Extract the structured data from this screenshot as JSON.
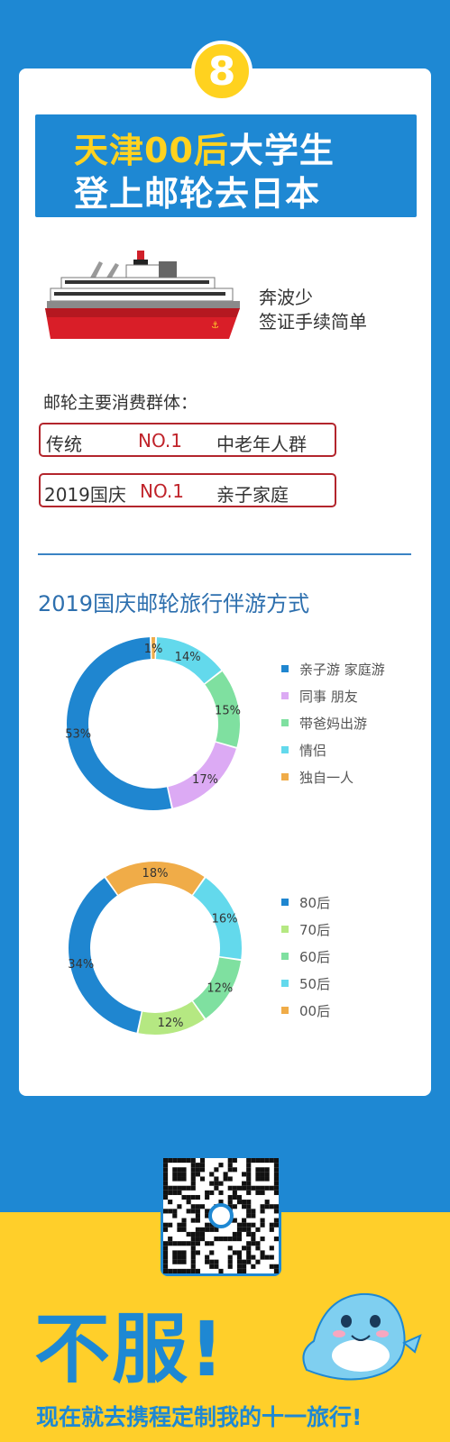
{
  "badge": {
    "number": "8"
  },
  "banner": {
    "line1_highlight": "天津00后",
    "line1_rest": "大学生",
    "line2": "登上邮轮去日本"
  },
  "ship_text": {
    "line1": "奔波少",
    "line2": "签证手续简单"
  },
  "consumer_section": {
    "label": "邮轮主要消费群体：",
    "rows": [
      {
        "category": "传统",
        "rank": "NO.1",
        "group": "中老年人群"
      },
      {
        "category": "2019国庆",
        "rank": "NO.1",
        "group": "亲子家庭"
      }
    ]
  },
  "chart_section_title": "2019国庆邮轮旅行伴游方式",
  "chart_data": [
    {
      "type": "pie",
      "series": [
        {
          "name": "亲子游 家庭游",
          "value": 53,
          "label": "53%",
          "color": "#1f86d0"
        },
        {
          "name": "同事 朋友",
          "value": 17,
          "label": "17%",
          "color": "#dcaaf4"
        },
        {
          "name": "带爸妈出游",
          "value": 15,
          "label": "15%",
          "color": "#7fe0a0"
        },
        {
          "name": "情侣",
          "value": 14,
          "label": "14%",
          "color": "#63d9ec"
        },
        {
          "name": "独自一人",
          "value": 1,
          "label": "1%",
          "color": "#f0ac48"
        }
      ],
      "draw_order": [
        0,
        1,
        2,
        3,
        4
      ]
    },
    {
      "type": "pie",
      "series": [
        {
          "name": "80后",
          "value": 34,
          "label": "34%",
          "color": "#1f86d0"
        },
        {
          "name": "70后",
          "value": 12,
          "label": "12%",
          "color": "#b5e882"
        },
        {
          "name": "60后",
          "value": 12,
          "label": "12%",
          "color": "#7fe0a0"
        },
        {
          "name": "50后",
          "value": 16,
          "label": "16%",
          "color": "#63d9ec"
        },
        {
          "name": "00后",
          "value": 18,
          "label": "18%",
          "color": "#f0ac48"
        }
      ],
      "draw_order": [
        0,
        1,
        2,
        3,
        4
      ]
    }
  ],
  "cta": {
    "big": "不服!",
    "sub": "现在就去携程定制我的十一旅行!"
  }
}
